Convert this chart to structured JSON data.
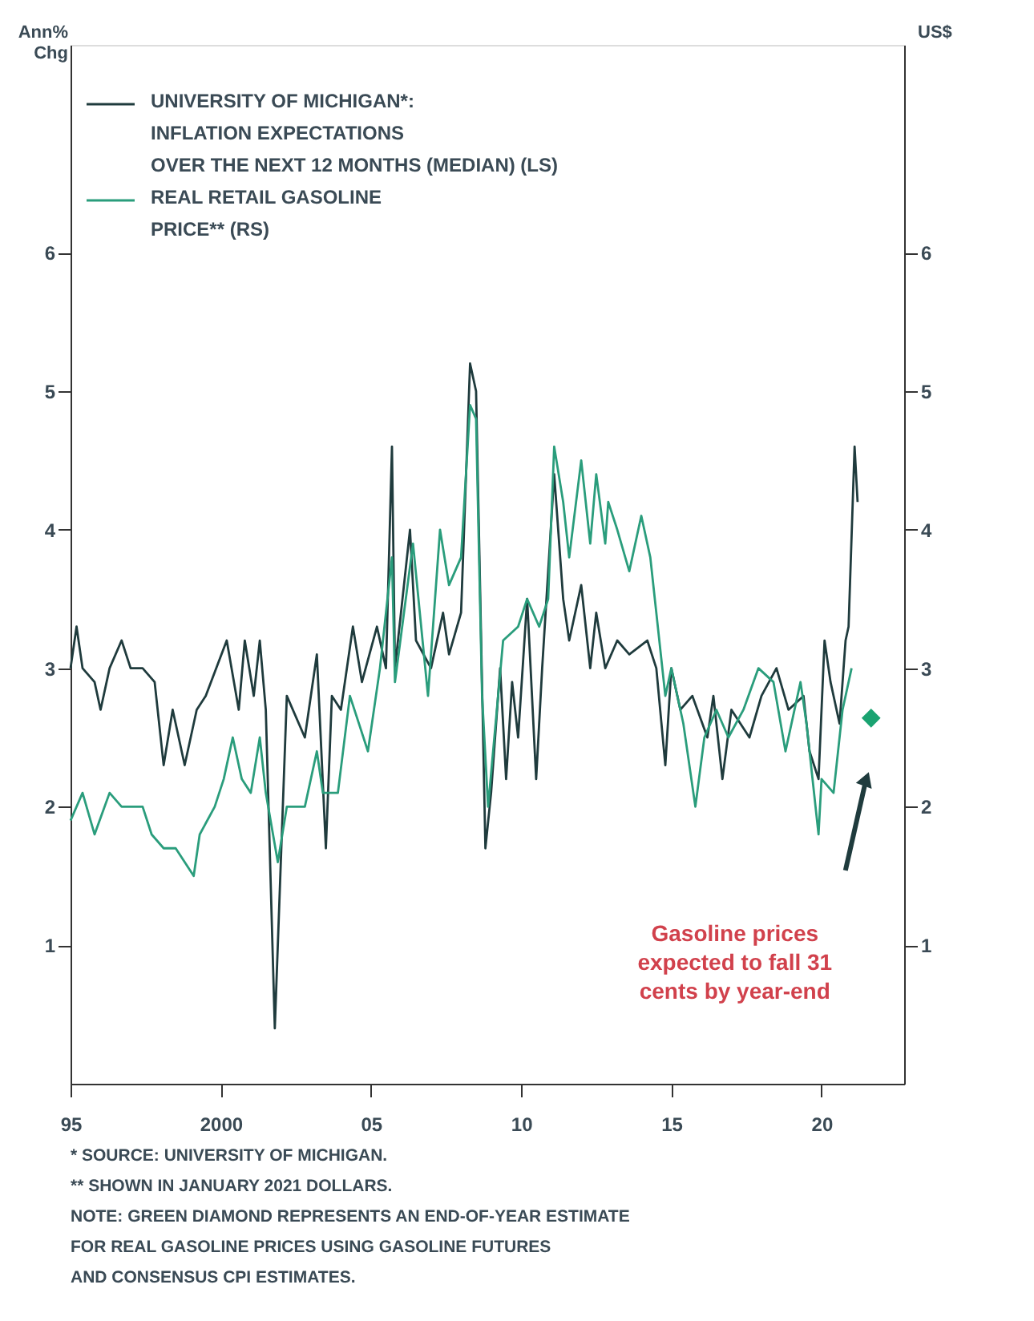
{
  "chart_data": {
    "type": "line",
    "ylabel": "Ann%\nChg",
    "y2label": "US$",
    "xlim": [
      1995,
      2022.75
    ],
    "xticks": [
      {
        "value": 1995,
        "label": "95"
      },
      2000,
      {
        "value": 2005,
        "label": "05"
      },
      {
        "value": 2010,
        "label": "10"
      },
      {
        "value": 2015,
        "label": "15"
      },
      {
        "value": 2020,
        "label": "20"
      }
    ],
    "ylim": [
      0,
      7.5
    ],
    "yticks": [
      1,
      2,
      3,
      4,
      5,
      6
    ],
    "y2lim": [
      0,
      7.5
    ],
    "y2ticks": [
      1,
      2,
      3,
      4,
      5,
      6
    ],
    "grid": false,
    "legend": "top left",
    "line_style": "solid",
    "marker": "none",
    "series": [
      {
        "name": "UNIVERSITY OF MICHIGAN*:\nINFLATION EXPECTATIONS\nOVER THE NEXT 12 MONTHS (MEDIAN) (LS)",
        "color": "#1f3b3d",
        "x": [
          1995.0,
          1995.2,
          1995.4,
          1995.8,
          1996.0,
          1996.3,
          1996.7,
          1997.0,
          1997.4,
          1997.8,
          1998.1,
          1998.4,
          1998.8,
          1999.2,
          1999.5,
          2000.2,
          2000.6,
          2000.8,
          2001.1,
          2001.3,
          2001.5,
          2001.8,
          2002.2,
          2002.8,
          2003.2,
          2003.5,
          2003.7,
          2004.0,
          2004.4,
          2004.7,
          2005.2,
          2005.5,
          2005.7,
          2005.8,
          2006.3,
          2006.5,
          2007.0,
          2007.4,
          2007.6,
          2008.0,
          2008.3,
          2008.5,
          2008.81,
          2009.0,
          2009.3,
          2009.5,
          2009.7,
          2009.9,
          2010.2,
          2010.5,
          2010.7,
          2011.1,
          2011.4,
          2011.6,
          2012.0,
          2012.3,
          2012.5,
          2012.8,
          2013.2,
          2013.6,
          2014.2,
          2014.5,
          2014.8,
          2015.0,
          2015.3,
          2015.7,
          2016.2,
          2016.4,
          2016.7,
          2017.0,
          2017.6,
          2018.0,
          2018.5,
          2018.9,
          2019.4,
          2019.6,
          2019.9,
          2020.1,
          2020.3,
          2020.6,
          2020.8,
          2020.9,
          2021.1,
          2021.2
        ],
        "values": [
          3.0,
          3.3,
          3.0,
          2.9,
          2.7,
          3.0,
          3.2,
          3.0,
          3.0,
          2.9,
          2.3,
          2.7,
          2.3,
          2.7,
          2.8,
          3.2,
          2.7,
          3.2,
          2.8,
          3.2,
          2.7,
          0.4,
          2.8,
          2.5,
          3.1,
          1.7,
          2.8,
          2.7,
          3.3,
          2.9,
          3.3,
          3.0,
          4.6,
          3.0,
          4.0,
          3.2,
          3.0,
          3.4,
          3.1,
          3.4,
          5.2,
          5.0,
          1.7,
          2.1,
          3.0,
          2.2,
          2.9,
          2.5,
          3.5,
          2.2,
          3.0,
          4.4,
          3.5,
          3.2,
          3.6,
          3.0,
          3.4,
          3.0,
          3.2,
          3.1,
          3.2,
          3.0,
          2.3,
          3.0,
          2.7,
          2.8,
          2.5,
          2.8,
          2.2,
          2.7,
          2.5,
          2.8,
          3.0,
          2.7,
          2.8,
          2.4,
          2.2,
          3.2,
          2.9,
          2.6,
          3.2,
          3.3,
          4.6,
          4.2
        ]
      },
      {
        "name": "REAL RETAIL GASOLINE\nPRICE** (RS)",
        "color": "#2a9d7c",
        "axis": "y2",
        "x": [
          1995.0,
          1995.4,
          1995.8,
          1996.3,
          1996.7,
          1997.4,
          1997.7,
          1998.1,
          1998.5,
          1999.1,
          1999.3,
          1999.8,
          2000.1,
          2000.4,
          2000.7,
          2001.0,
          2001.3,
          2001.5,
          2001.9,
          2002.2,
          2002.8,
          2003.2,
          2003.4,
          2003.9,
          2004.3,
          2004.9,
          2005.3,
          2005.7,
          2005.8,
          2006.4,
          2006.9,
          2007.3,
          2007.6,
          2008.0,
          2008.3,
          2008.5,
          2008.7,
          2008.9,
          2009.4,
          2009.9,
          2010.2,
          2010.6,
          2010.9,
          2011.1,
          2011.4,
          2011.6,
          2012.0,
          2012.3,
          2012.5,
          2012.8,
          2012.9,
          2013.2,
          2013.6,
          2014.0,
          2014.3,
          2014.8,
          2015.0,
          2015.4,
          2015.8,
          2016.1,
          2016.5,
          2016.9,
          2017.4,
          2017.9,
          2018.4,
          2018.8,
          2019.3,
          2019.5,
          2019.9,
          2020.0,
          2020.4,
          2020.7,
          2021.0
        ],
        "values": [
          1.9,
          2.1,
          1.8,
          2.1,
          2.0,
          2.0,
          1.8,
          1.7,
          1.7,
          1.5,
          1.8,
          2.0,
          2.2,
          2.5,
          2.2,
          2.1,
          2.5,
          2.1,
          1.6,
          2.0,
          2.0,
          2.4,
          2.1,
          2.1,
          2.8,
          2.4,
          3.0,
          3.8,
          2.9,
          3.9,
          2.8,
          4.0,
          3.6,
          3.8,
          4.9,
          4.8,
          2.8,
          2.0,
          3.2,
          3.3,
          3.5,
          3.3,
          3.5,
          4.6,
          4.2,
          3.8,
          4.5,
          3.9,
          4.4,
          3.9,
          4.2,
          4.0,
          3.7,
          4.1,
          3.8,
          2.8,
          3.0,
          2.6,
          2.0,
          2.5,
          2.7,
          2.5,
          2.7,
          3.0,
          2.9,
          2.4,
          2.9,
          2.6,
          1.8,
          2.2,
          2.1,
          2.7,
          3.0
        ]
      },
      {
        "type": "scatter",
        "marker": "diamond",
        "color": "#1aa371",
        "axis": "y2",
        "x": [
          2021.65
        ],
        "values": [
          2.64
        ]
      }
    ],
    "annotations": [
      "Gasoline prices\nexpected to fall 31\ncents by year-end",
      "* SOURCE: UNIVERSITY OF MICHIGAN.",
      "** SHOWN IN JANUARY 2021 DOLLARS.",
      "NOTE: GREEN DIAMOND REPRESENTS AN END-OF-YEAR ESTIMATE",
      "FOR REAL GASOLINE PRICES USING GASOLINE FUTURES",
      "AND CONSENSUS CPI ESTIMATES."
    ]
  }
}
